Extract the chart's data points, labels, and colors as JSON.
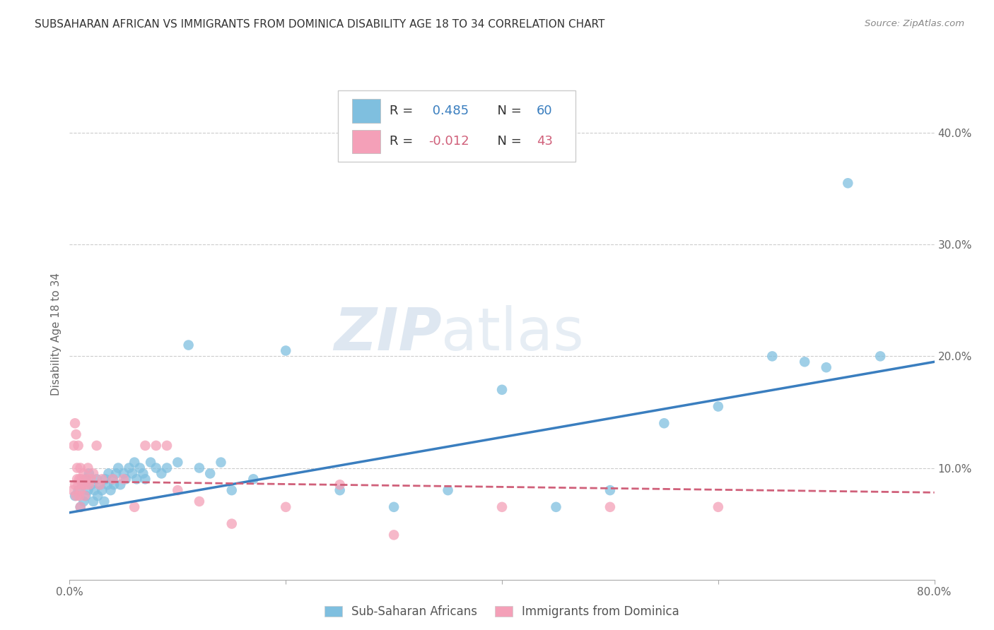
{
  "title": "SUBSAHARAN AFRICAN VS IMMIGRANTS FROM DOMINICA DISABILITY AGE 18 TO 34 CORRELATION CHART",
  "source": "Source: ZipAtlas.com",
  "ylabel": "Disability Age 18 to 34",
  "xlim": [
    0.0,
    0.8
  ],
  "ylim": [
    0.0,
    0.44
  ],
  "xticks": [
    0.0,
    0.2,
    0.4,
    0.6,
    0.8
  ],
  "xticklabels": [
    "0.0%",
    "",
    "",
    "",
    "80.0%"
  ],
  "yticks_right": [
    0.1,
    0.2,
    0.3,
    0.4
  ],
  "ytick_right_labels": [
    "10.0%",
    "20.0%",
    "30.0%",
    "40.0%"
  ],
  "grid_color": "#cccccc",
  "background_color": "#ffffff",
  "watermark_text": "ZIPatlas",
  "legend_r_blue": "0.485",
  "legend_n_blue": "60",
  "legend_r_pink": "-0.012",
  "legend_n_pink": "43",
  "blue_color": "#7fbfdf",
  "pink_color": "#f4a0b8",
  "blue_line_color": "#3a7ebf",
  "pink_line_color": "#d0607a",
  "legend_label_blue": "Sub-Saharan Africans",
  "legend_label_pink": "Immigrants from Dominica",
  "blue_scatter_x": [
    0.005,
    0.008,
    0.01,
    0.012,
    0.013,
    0.015,
    0.015,
    0.017,
    0.018,
    0.02,
    0.022,
    0.023,
    0.025,
    0.026,
    0.028,
    0.03,
    0.032,
    0.033,
    0.035,
    0.036,
    0.038,
    0.04,
    0.041,
    0.043,
    0.045,
    0.047,
    0.05,
    0.052,
    0.055,
    0.058,
    0.06,
    0.062,
    0.065,
    0.068,
    0.07,
    0.075,
    0.08,
    0.085,
    0.09,
    0.1,
    0.11,
    0.12,
    0.13,
    0.14,
    0.15,
    0.17,
    0.2,
    0.25,
    0.3,
    0.35,
    0.4,
    0.45,
    0.5,
    0.55,
    0.6,
    0.65,
    0.68,
    0.7,
    0.72,
    0.75
  ],
  "blue_scatter_y": [
    0.075,
    0.08,
    0.065,
    0.085,
    0.07,
    0.09,
    0.075,
    0.08,
    0.095,
    0.085,
    0.07,
    0.08,
    0.09,
    0.075,
    0.085,
    0.08,
    0.07,
    0.09,
    0.085,
    0.095,
    0.08,
    0.09,
    0.085,
    0.095,
    0.1,
    0.085,
    0.095,
    0.09,
    0.1,
    0.095,
    0.105,
    0.09,
    0.1,
    0.095,
    0.09,
    0.105,
    0.1,
    0.095,
    0.1,
    0.105,
    0.21,
    0.1,
    0.095,
    0.105,
    0.08,
    0.09,
    0.205,
    0.08,
    0.065,
    0.08,
    0.17,
    0.065,
    0.08,
    0.14,
    0.155,
    0.2,
    0.195,
    0.19,
    0.355,
    0.2
  ],
  "pink_scatter_x": [
    0.003,
    0.004,
    0.005,
    0.005,
    0.006,
    0.006,
    0.007,
    0.007,
    0.008,
    0.008,
    0.009,
    0.009,
    0.01,
    0.01,
    0.01,
    0.011,
    0.012,
    0.013,
    0.014,
    0.015,
    0.016,
    0.017,
    0.018,
    0.02,
    0.022,
    0.025,
    0.028,
    0.03,
    0.04,
    0.05,
    0.06,
    0.07,
    0.08,
    0.09,
    0.1,
    0.12,
    0.15,
    0.2,
    0.25,
    0.3,
    0.4,
    0.5,
    0.6
  ],
  "pink_scatter_y": [
    0.08,
    0.12,
    0.085,
    0.14,
    0.075,
    0.13,
    0.09,
    0.1,
    0.085,
    0.12,
    0.075,
    0.09,
    0.08,
    0.1,
    0.065,
    0.09,
    0.085,
    0.095,
    0.075,
    0.085,
    0.09,
    0.1,
    0.085,
    0.09,
    0.095,
    0.12,
    0.085,
    0.09,
    0.09,
    0.09,
    0.065,
    0.12,
    0.12,
    0.12,
    0.08,
    0.07,
    0.05,
    0.065,
    0.085,
    0.04,
    0.065,
    0.065,
    0.065
  ],
  "blue_line_x": [
    0.0,
    0.8
  ],
  "blue_line_y": [
    0.06,
    0.195
  ],
  "pink_line_x": [
    0.0,
    0.8
  ],
  "pink_line_y": [
    0.088,
    0.078
  ]
}
